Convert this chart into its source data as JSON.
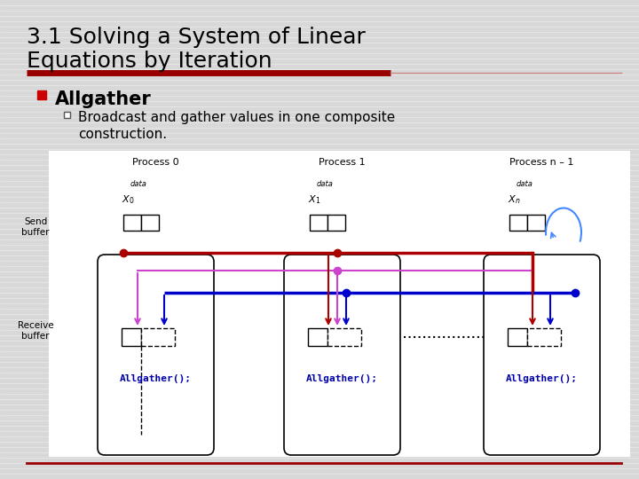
{
  "title_line1": "3.1 Solving a System of Linear",
  "title_line2": "Equations by Iteration",
  "bg_color": "#D8D8D8",
  "title_color": "#000000",
  "title_fontsize": 18,
  "bullet_main": "Allgather",
  "bullet_sub_line1": "Broadcast and gather values in one composite",
  "bullet_sub_line2": "construction.",
  "bullet_main_color": "#000000",
  "bullet_sub_color": "#000000",
  "red_bullet_color": "#CC0000",
  "accent_bar_color": "#990000",
  "bottom_bar_color": "#990000",
  "diagram_bg": "#FFFFFF",
  "process_labels": [
    "Process 0",
    "Process 1",
    "Process n – 1"
  ],
  "send_label": "Send\nbuffer",
  "recv_label": "Receive\nbuffer",
  "allgather_label": "Allgather();",
  "red_line_color": "#AA0000",
  "blue_line_color": "#0000CC",
  "magenta_color": "#CC44CC",
  "code_color": "#0000AA",
  "curve_color": "#4488FF"
}
